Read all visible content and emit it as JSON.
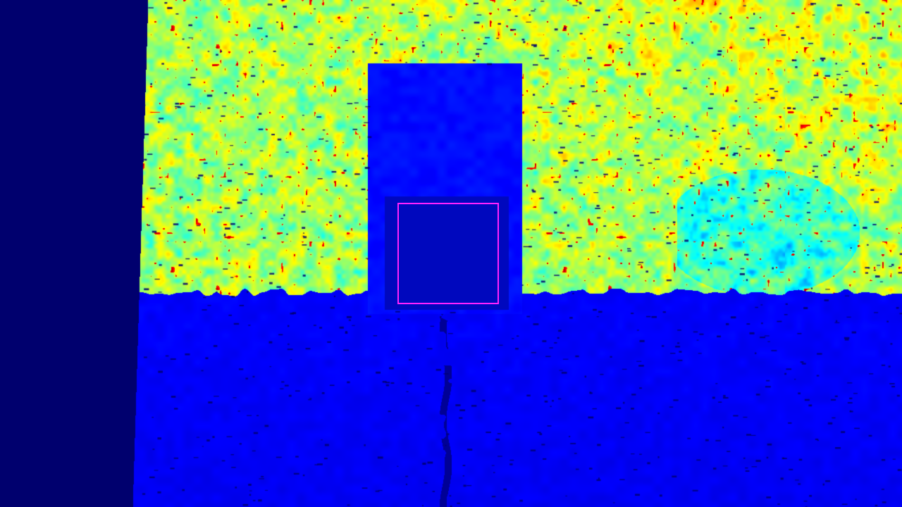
{
  "image": {
    "kind": "depth-colormap",
    "colormap": "jet",
    "colors": {
      "background_left_band": "#00006e",
      "floor": "#0a0ad6",
      "door_panel": "#0a0fdc",
      "wall_low": "#00e0ff",
      "wall_high": "#ffd000",
      "hotspot": "#d20000",
      "roi_outline": "#ff22ff"
    }
  },
  "overlay": {
    "roi_box_color": "#ff22ff"
  }
}
